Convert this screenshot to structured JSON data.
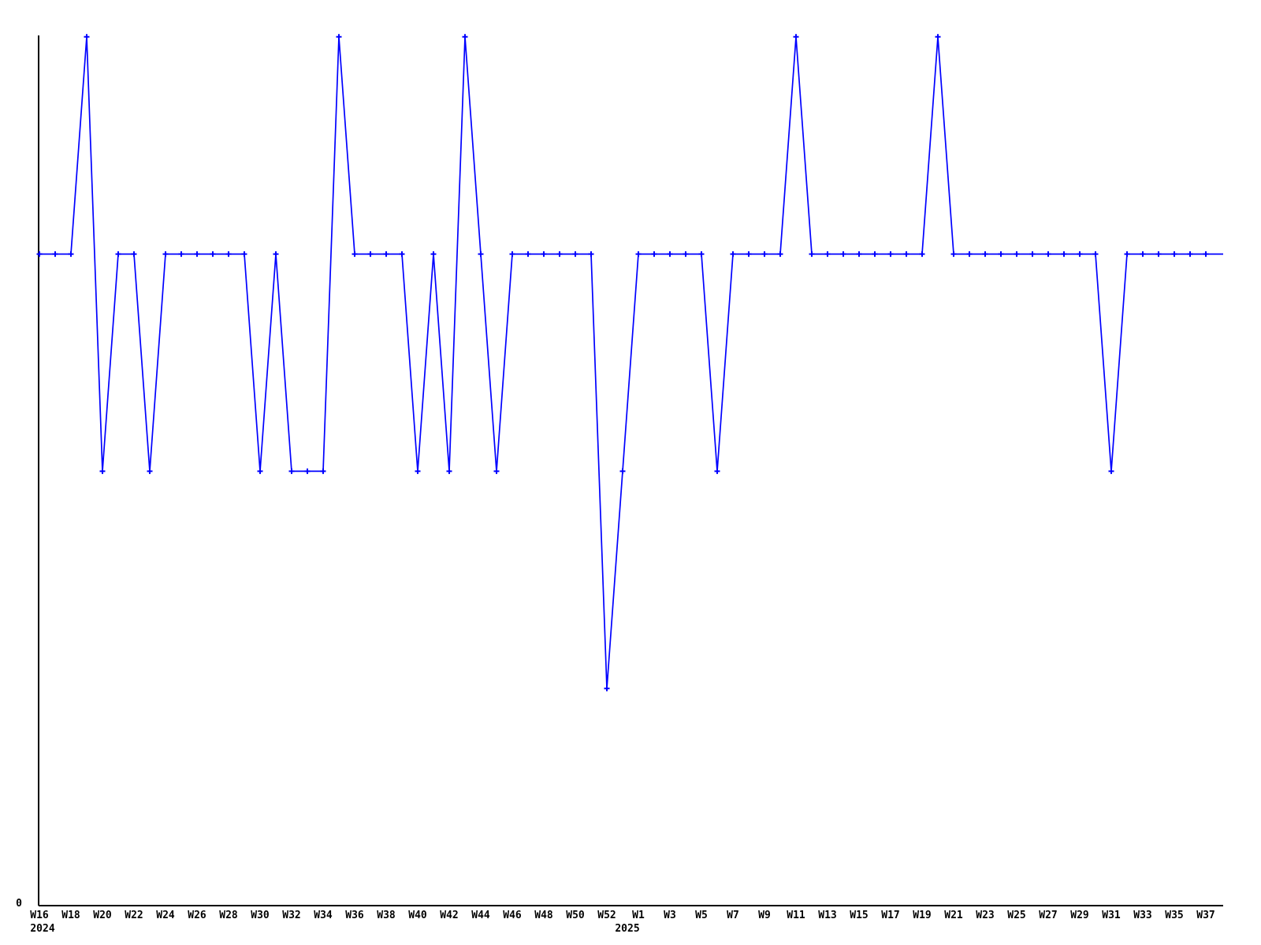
{
  "chart_data": {
    "type": "line",
    "title": "",
    "xlabel": "",
    "ylabel": "",
    "legend": null,
    "grid": false,
    "line_color": "#0000ff",
    "axis_color": "#000000",
    "marker": "plus",
    "y_axis": {
      "zero_label": "0",
      "ylim": [
        0,
        4.01
      ],
      "visible_tick_labels": [
        "0"
      ]
    },
    "x_axis": {
      "tick_interval": "2 weeks",
      "year_labels": [
        {
          "text": "2024",
          "index": 0
        },
        {
          "text": "2025",
          "index": 38
        }
      ]
    },
    "points": [
      {
        "year": 2024,
        "week": "W16",
        "value": 3
      },
      {
        "year": 2024,
        "week": "W17",
        "value": 3
      },
      {
        "year": 2024,
        "week": "W18",
        "value": 3
      },
      {
        "year": 2024,
        "week": "W19",
        "value": 4
      },
      {
        "year": 2024,
        "week": "W20",
        "value": 2
      },
      {
        "year": 2024,
        "week": "W21",
        "value": 3
      },
      {
        "year": 2024,
        "week": "W22",
        "value": 3
      },
      {
        "year": 2024,
        "week": "W23",
        "value": 2
      },
      {
        "year": 2024,
        "week": "W24",
        "value": 3
      },
      {
        "year": 2024,
        "week": "W25",
        "value": 3
      },
      {
        "year": 2024,
        "week": "W26",
        "value": 3
      },
      {
        "year": 2024,
        "week": "W27",
        "value": 3
      },
      {
        "year": 2024,
        "week": "W28",
        "value": 3
      },
      {
        "year": 2024,
        "week": "W29",
        "value": 3
      },
      {
        "year": 2024,
        "week": "W30",
        "value": 2
      },
      {
        "year": 2024,
        "week": "W31",
        "value": 3
      },
      {
        "year": 2024,
        "week": "W32",
        "value": 2
      },
      {
        "year": 2024,
        "week": "W33",
        "value": 2
      },
      {
        "year": 2024,
        "week": "W34",
        "value": 2
      },
      {
        "year": 2024,
        "week": "W35",
        "value": 4
      },
      {
        "year": 2024,
        "week": "W36",
        "value": 3
      },
      {
        "year": 2024,
        "week": "W37",
        "value": 3
      },
      {
        "year": 2024,
        "week": "W38",
        "value": 3
      },
      {
        "year": 2024,
        "week": "W39",
        "value": 3
      },
      {
        "year": 2024,
        "week": "W40",
        "value": 2
      },
      {
        "year": 2024,
        "week": "W41",
        "value": 3
      },
      {
        "year": 2024,
        "week": "W42",
        "value": 2
      },
      {
        "year": 2024,
        "week": "W43",
        "value": 4
      },
      {
        "year": 2024,
        "week": "W44",
        "value": 3
      },
      {
        "year": 2024,
        "week": "W45",
        "value": 2
      },
      {
        "year": 2024,
        "week": "W46",
        "value": 3
      },
      {
        "year": 2024,
        "week": "W47",
        "value": 3
      },
      {
        "year": 2024,
        "week": "W48",
        "value": 3
      },
      {
        "year": 2024,
        "week": "W49",
        "value": 3
      },
      {
        "year": 2024,
        "week": "W50",
        "value": 3
      },
      {
        "year": 2024,
        "week": "W51",
        "value": 3
      },
      {
        "year": 2024,
        "week": "W52",
        "value": 1
      },
      {
        "year": 2024,
        "week": "W53",
        "value": 2
      },
      {
        "year": 2025,
        "week": "W1",
        "value": 3
      },
      {
        "year": 2025,
        "week": "W2",
        "value": 3
      },
      {
        "year": 2025,
        "week": "W3",
        "value": 3
      },
      {
        "year": 2025,
        "week": "W4",
        "value": 3
      },
      {
        "year": 2025,
        "week": "W5",
        "value": 3
      },
      {
        "year": 2025,
        "week": "W6",
        "value": 2
      },
      {
        "year": 2025,
        "week": "W7",
        "value": 3
      },
      {
        "year": 2025,
        "week": "W8",
        "value": 3
      },
      {
        "year": 2025,
        "week": "W9",
        "value": 3
      },
      {
        "year": 2025,
        "week": "W10",
        "value": 3
      },
      {
        "year": 2025,
        "week": "W11",
        "value": 4
      },
      {
        "year": 2025,
        "week": "W12",
        "value": 3
      },
      {
        "year": 2025,
        "week": "W13",
        "value": 3
      },
      {
        "year": 2025,
        "week": "W14",
        "value": 3
      },
      {
        "year": 2025,
        "week": "W15",
        "value": 3
      },
      {
        "year": 2025,
        "week": "W16",
        "value": 3
      },
      {
        "year": 2025,
        "week": "W17",
        "value": 3
      },
      {
        "year": 2025,
        "week": "W18",
        "value": 3
      },
      {
        "year": 2025,
        "week": "W19",
        "value": 3
      },
      {
        "year": 2025,
        "week": "W20",
        "value": 4
      },
      {
        "year": 2025,
        "week": "W21",
        "value": 3
      },
      {
        "year": 2025,
        "week": "W22",
        "value": 3
      },
      {
        "year": 2025,
        "week": "W23",
        "value": 3
      },
      {
        "year": 2025,
        "week": "W24",
        "value": 3
      },
      {
        "year": 2025,
        "week": "W25",
        "value": 3
      },
      {
        "year": 2025,
        "week": "W26",
        "value": 3
      },
      {
        "year": 2025,
        "week": "W27",
        "value": 3
      },
      {
        "year": 2025,
        "week": "W28",
        "value": 3
      },
      {
        "year": 2025,
        "week": "W29",
        "value": 3
      },
      {
        "year": 2025,
        "week": "W30",
        "value": 3
      },
      {
        "year": 2025,
        "week": "W31",
        "value": 2
      },
      {
        "year": 2025,
        "week": "W32",
        "value": 3
      },
      {
        "year": 2025,
        "week": "W33",
        "value": 3
      },
      {
        "year": 2025,
        "week": "W34",
        "value": 3
      },
      {
        "year": 2025,
        "week": "W35",
        "value": 3
      },
      {
        "year": 2025,
        "week": "W36",
        "value": 3
      },
      {
        "year": 2025,
        "week": "W37",
        "value": 3
      }
    ]
  }
}
